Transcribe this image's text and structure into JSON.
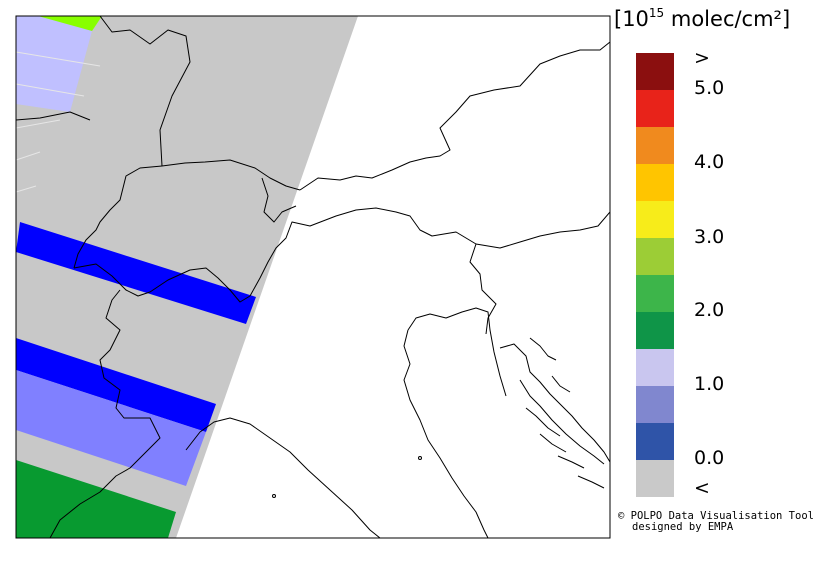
{
  "legend": {
    "unit_prefix": "[10",
    "unit_exp": "15",
    "unit_suffix": " molec/cm²]",
    "tick_labels": [
      ">",
      "5.0",
      "4.0",
      "3.0",
      "2.0",
      "1.0",
      "0.0",
      "<"
    ],
    "colors_top_to_bottom": [
      "#8b0f0f",
      "#e8231a",
      "#f08a1e",
      "#ffc500",
      "#f7ec1a",
      "#9ccd36",
      "#3db54a",
      "#0f9548",
      "#c9c6ef",
      "#8087cf",
      "#2f54a8",
      "#c9c9c9"
    ]
  },
  "credit": {
    "line1": "© POLPO Data Visualisation Tool",
    "line2": "designed by EMPA"
  },
  "map": {
    "colors": {
      "nodata": "#c8c8c8",
      "pixel_dark_blue": "#0000ff",
      "pixel_mid_blue": "#8080ff",
      "pixel_light_blue": "#c0c0ff",
      "pixel_green": "#089a30",
      "pixel_yellow_green": "#88ff00",
      "coastline": "#000000"
    }
  }
}
